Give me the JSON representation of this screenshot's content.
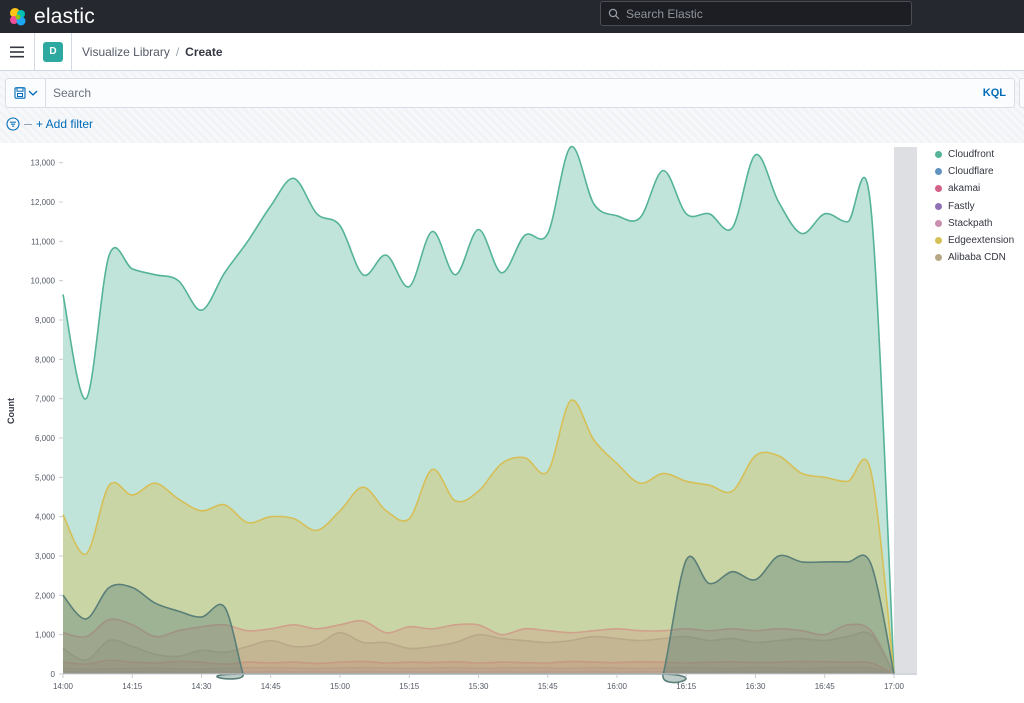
{
  "header": {
    "logo_text": "elastic",
    "search_placeholder": "Search Elastic"
  },
  "breadcrumbs": {
    "space_initial": "D",
    "parent": "Visualize Library",
    "separator": "/",
    "current": "Create"
  },
  "query": {
    "placeholder": "Search",
    "language": "KQL",
    "add_filter": "+ Add filter"
  },
  "chart_data": {
    "type": "area",
    "ylabel": "Count",
    "xlabel": "",
    "x_tick_labels": [
      "14:00",
      "14:15",
      "14:30",
      "14:45",
      "15:00",
      "15:15",
      "15:30",
      "15:45",
      "16:00",
      "16:15",
      "16:30",
      "16:45",
      "17:00"
    ],
    "y_ticks": [
      0,
      1000,
      2000,
      3000,
      4000,
      5000,
      6000,
      7000,
      8000,
      9000,
      10000,
      11000,
      12000,
      13000
    ],
    "y_tick_labels": [
      "0",
      "1,000",
      "2,000",
      "3,000",
      "4,000",
      "5,000",
      "6,000",
      "7,000",
      "8,000",
      "9,000",
      "10,000",
      "11,000",
      "12,000",
      "13,000"
    ],
    "ylim": [
      0,
      13500
    ],
    "xlim_minutes": [
      0,
      180
    ],
    "legend_position": "right",
    "stacked": false,
    "grid": false,
    "series": [
      {
        "name": "Cloudfront",
        "color": "#54b399",
        "x_minutes": [
          0,
          5,
          10,
          15,
          20,
          25,
          30,
          35,
          40,
          45,
          50,
          55,
          60,
          65,
          70,
          75,
          80,
          85,
          90,
          95,
          100,
          105,
          110,
          115,
          120,
          125,
          130,
          135,
          140,
          145,
          150,
          155,
          160,
          165,
          170,
          175,
          180
        ],
        "values": [
          9650,
          7000,
          10650,
          10300,
          10150,
          10000,
          9250,
          10200,
          11000,
          11900,
          12600,
          11700,
          11400,
          10150,
          10650,
          9850,
          11250,
          10150,
          11300,
          10200,
          11150,
          11200,
          13400,
          11950,
          11650,
          11600,
          12800,
          11700,
          11700,
          11350,
          13200,
          12000,
          11200,
          11700,
          11500,
          11850,
          0
        ]
      },
      {
        "name": "Cloudflare",
        "color": "#6092c0",
        "x_minutes": [
          0,
          5,
          10,
          15,
          20,
          25,
          30,
          35,
          40,
          45,
          50,
          55,
          60,
          65,
          70,
          75,
          80,
          85,
          90,
          95,
          100,
          105,
          110,
          115,
          120,
          125,
          130,
          135,
          140,
          145,
          150,
          155,
          160,
          165,
          170,
          175,
          180
        ],
        "values": [
          150,
          120,
          130,
          140,
          150,
          130,
          120,
          140,
          150,
          160,
          150,
          140,
          150,
          160,
          150,
          140,
          150,
          160,
          140,
          150,
          160,
          150,
          140,
          160,
          150,
          140,
          150,
          160,
          150,
          140,
          160,
          150,
          140,
          150,
          160,
          150,
          0
        ]
      },
      {
        "name": "akamai",
        "color": "#d36086",
        "x_minutes": [
          0,
          5,
          10,
          15,
          20,
          25,
          30,
          35,
          40,
          45,
          50,
          55,
          60,
          65,
          70,
          75,
          80,
          85,
          90,
          95,
          100,
          105,
          110,
          115,
          120,
          125,
          130,
          135,
          140,
          145,
          150,
          155,
          160,
          165,
          170,
          175,
          180
        ],
        "values": [
          300,
          250,
          350,
          300,
          280,
          320,
          300,
          250,
          300,
          280,
          300,
          270,
          300,
          320,
          280,
          300,
          290,
          310,
          280,
          300,
          290,
          280,
          320,
          300,
          290,
          310,
          300,
          280,
          300,
          310,
          290,
          300,
          320,
          310,
          300,
          280,
          0
        ]
      },
      {
        "name": "Fastly",
        "color": "#9170b8",
        "x_minutes": [
          0,
          5,
          10,
          15,
          20,
          25,
          30,
          35,
          40,
          45,
          50,
          55,
          60,
          65,
          70,
          75,
          80,
          85,
          90,
          95,
          100,
          105,
          110,
          115,
          120,
          125,
          130,
          135,
          140,
          145,
          150,
          155,
          160,
          165,
          170,
          175,
          180
        ],
        "values": [
          60,
          50,
          60,
          55,
          60,
          50,
          60,
          55,
          50,
          60,
          55,
          60,
          50,
          60,
          55,
          60,
          50,
          60,
          55,
          60,
          50,
          60,
          55,
          60,
          50,
          60,
          55,
          60,
          50,
          60,
          55,
          60,
          50,
          60,
          55,
          60,
          0
        ]
      },
      {
        "name": "Stackpath",
        "color": "#ca8eae",
        "x_minutes": [
          0,
          5,
          10,
          15,
          20,
          25,
          30,
          35,
          40,
          45,
          50,
          55,
          60,
          65,
          70,
          75,
          80,
          85,
          90,
          95,
          100,
          105,
          110,
          115,
          120,
          125,
          130,
          135,
          140,
          145,
          150,
          155,
          160,
          165,
          170,
          175,
          180
        ],
        "values": [
          1050,
          950,
          1380,
          1250,
          950,
          1100,
          1200,
          1250,
          1100,
          1150,
          1250,
          1150,
          1250,
          1350,
          1050,
          1200,
          1150,
          1250,
          1250,
          1000,
          1150,
          1100,
          1050,
          1100,
          1150,
          1100,
          1100,
          1150,
          1100,
          1150,
          1100,
          1150,
          1100,
          1000,
          1250,
          1100,
          0
        ]
      },
      {
        "name": "Edgeextension",
        "color": "#d6bf57",
        "x_minutes": [
          0,
          5,
          10,
          15,
          20,
          25,
          30,
          35,
          40,
          45,
          50,
          55,
          60,
          65,
          70,
          75,
          80,
          85,
          90,
          95,
          100,
          105,
          110,
          115,
          120,
          125,
          130,
          135,
          140,
          145,
          150,
          155,
          160,
          165,
          170,
          175,
          180
        ],
        "values": [
          4050,
          3050,
          4800,
          4550,
          4850,
          4450,
          4150,
          4300,
          3850,
          4000,
          3950,
          3650,
          4150,
          4750,
          4150,
          3950,
          5200,
          4400,
          4650,
          5350,
          5500,
          5150,
          6950,
          5950,
          5350,
          4850,
          5100,
          4900,
          4800,
          4650,
          5550,
          5550,
          5100,
          5000,
          4900,
          5150,
          0
        ]
      },
      {
        "name": "Alibaba CDN",
        "color": "#b9a888",
        "x_minutes": [
          0,
          5,
          10,
          15,
          20,
          25,
          30,
          35,
          40,
          45,
          50,
          55,
          60,
          65,
          70,
          75,
          80,
          85,
          90,
          95,
          100,
          105,
          110,
          115,
          120,
          125,
          130,
          135,
          140,
          145,
          150,
          155,
          160,
          165,
          170,
          175,
          180
        ],
        "values": [
          650,
          350,
          850,
          700,
          500,
          450,
          600,
          550,
          700,
          850,
          700,
          750,
          1050,
          800,
          800,
          650,
          700,
          800,
          1000,
          900,
          850,
          800,
          850,
          950,
          900,
          850,
          900,
          950,
          850,
          900,
          800,
          850,
          900,
          850,
          950,
          1000,
          0
        ]
      },
      {
        "name": "",
        "color": "#5a7f78",
        "x_minutes": [
          0,
          5,
          10,
          15,
          20,
          25,
          30,
          35,
          39,
          40,
          128,
          130,
          135,
          140,
          145,
          150,
          155,
          160,
          165,
          170,
          175,
          180
        ],
        "values": [
          2000,
          1400,
          2200,
          2200,
          1800,
          1600,
          1450,
          1700,
          0,
          0,
          0,
          0,
          2900,
          2300,
          2600,
          2400,
          3000,
          2850,
          2850,
          2850,
          2800,
          0
        ]
      }
    ]
  }
}
